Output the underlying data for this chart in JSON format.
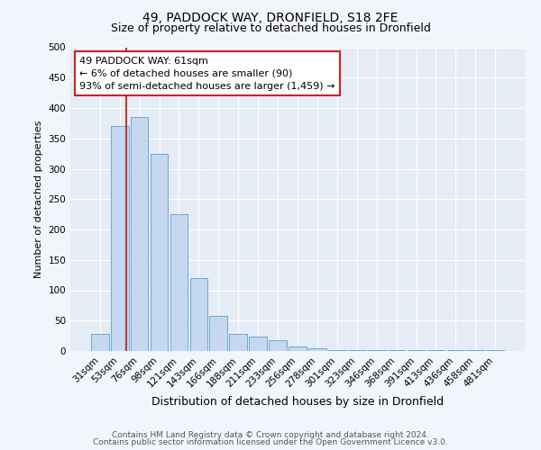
{
  "title1": "49, PADDOCK WAY, DRONFIELD, S18 2FE",
  "title2": "Size of property relative to detached houses in Dronfield",
  "xlabel": "Distribution of detached houses by size in Dronfield",
  "ylabel": "Number of detached properties",
  "bar_labels": [
    "31sqm",
    "53sqm",
    "76sqm",
    "98sqm",
    "121sqm",
    "143sqm",
    "166sqm",
    "188sqm",
    "211sqm",
    "233sqm",
    "256sqm",
    "278sqm",
    "301sqm",
    "323sqm",
    "346sqm",
    "368sqm",
    "391sqm",
    "413sqm",
    "436sqm",
    "458sqm",
    "481sqm"
  ],
  "bar_values": [
    28,
    370,
    385,
    325,
    225,
    120,
    58,
    28,
    23,
    18,
    8,
    5,
    2,
    1,
    1,
    1,
    1,
    2,
    1,
    1,
    2
  ],
  "bar_color": "#c5d8f0",
  "bar_edge_color": "#6aaad4",
  "vline_color": "#c0392b",
  "vline_x": 1.35,
  "annotation_box_text": "49 PADDOCK WAY: 61sqm\n← 6% of detached houses are smaller (90)\n93% of semi-detached houses are larger (1,459) →",
  "annotation_box_color": "#cc2222",
  "ylim": [
    0,
    500
  ],
  "yticks": [
    0,
    50,
    100,
    150,
    200,
    250,
    300,
    350,
    400,
    450,
    500
  ],
  "footer1": "Contains HM Land Registry data © Crown copyright and database right 2024.",
  "footer2": "Contains public sector information licensed under the Open Government Licence v3.0.",
  "bg_color": "#f2f5fb",
  "plot_bg_color": "#e6ecf5",
  "grid_color": "#ffffff",
  "title1_fontsize": 10,
  "title2_fontsize": 9,
  "xlabel_fontsize": 9,
  "ylabel_fontsize": 8,
  "tick_fontsize": 7.5,
  "annotation_fontsize": 8,
  "footer_fontsize": 6.5
}
